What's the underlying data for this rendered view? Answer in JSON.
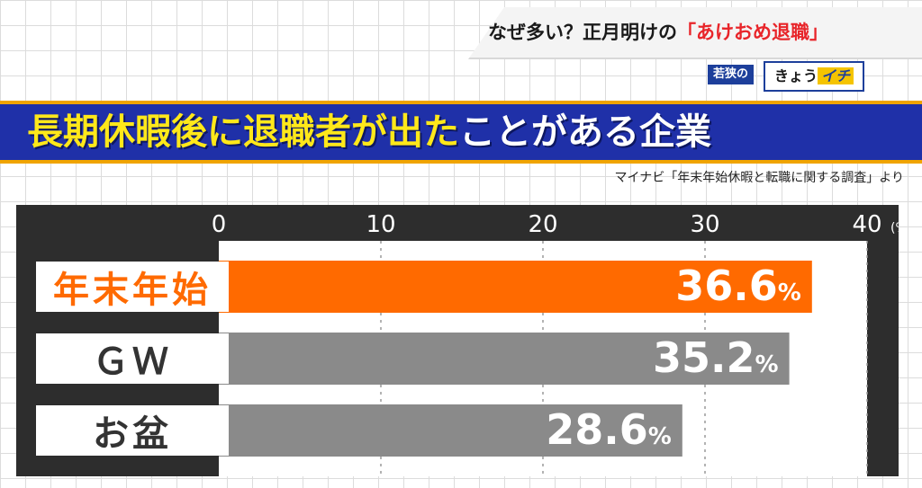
{
  "banner": {
    "title_prefix": "なぜ多い？正月明けの",
    "title_highlight": "「あけおめ退職」"
  },
  "logo": {
    "sub": "若狭の",
    "main": "きょう",
    "accent": "イチ"
  },
  "headline": {
    "part1": "長期休暇後に退職者が出た",
    "part2": "ことがある企業"
  },
  "source": "マイナビ「年末年始休暇と転職に関する調査」より",
  "colors": {
    "highlight_bar": "#ff6a00",
    "other_bar": "#8a8a8a",
    "headline_bg": "#1f30a8",
    "headline_text": "#ffe81a",
    "highlight_label": "#ff6a00",
    "other_label": "#333333"
  },
  "chart_data": {
    "type": "bar",
    "orientation": "horizontal",
    "categories": [
      "年末年始",
      "ＧＷ",
      "お盆"
    ],
    "values": [
      36.6,
      35.2,
      28.6
    ],
    "value_suffix": "%",
    "xlim": [
      0,
      40
    ],
    "x_ticks": [
      0,
      10,
      20,
      30,
      40
    ],
    "x_unit": "(%)",
    "highlight_index": 0,
    "grid": true
  }
}
